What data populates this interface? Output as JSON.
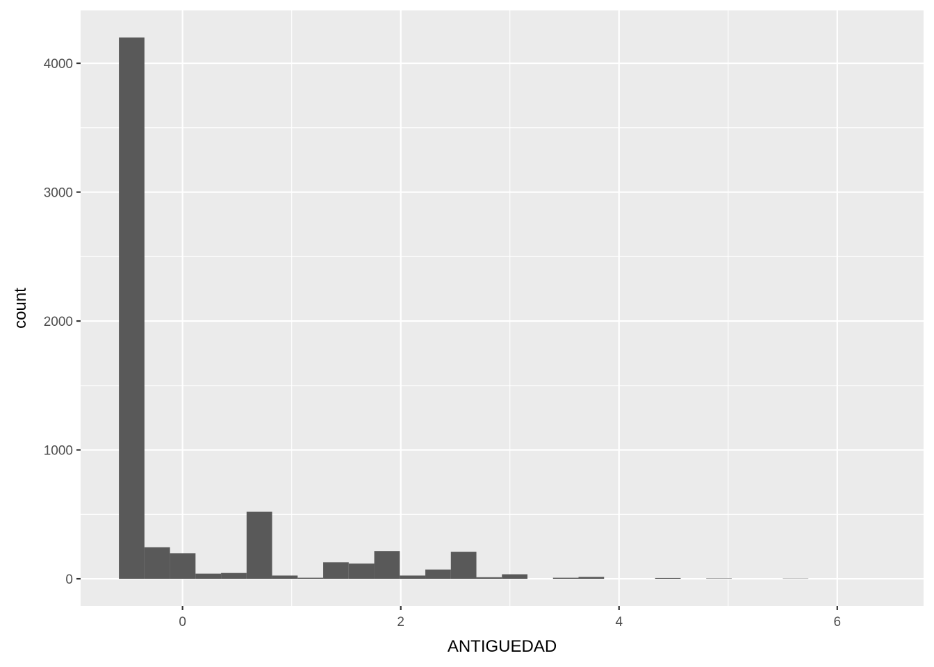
{
  "chart_data": {
    "type": "bar",
    "subtype": "histogram",
    "title": "",
    "xlabel": "ANTIGUEDAD",
    "ylabel": "count",
    "xlim": [
      -0.934,
      6.791
    ],
    "ylim": [
      -210,
      4410
    ],
    "x_ticks": [
      0,
      2,
      4,
      6
    ],
    "y_ticks": [
      0,
      1000,
      2000,
      3000,
      4000
    ],
    "x_tick_labels": [
      "0",
      "2",
      "4",
      "6"
    ],
    "y_tick_labels": [
      "0",
      "1000",
      "2000",
      "3000",
      "4000"
    ],
    "grid": true,
    "bins": [
      {
        "x0": -0.583,
        "x1": -0.349,
        "count": 4200
      },
      {
        "x0": -0.349,
        "x1": -0.115,
        "count": 245
      },
      {
        "x0": -0.115,
        "x1": 0.119,
        "count": 198
      },
      {
        "x0": 0.119,
        "x1": 0.353,
        "count": 40
      },
      {
        "x0": 0.353,
        "x1": 0.587,
        "count": 45
      },
      {
        "x0": 0.587,
        "x1": 0.821,
        "count": 520
      },
      {
        "x0": 0.821,
        "x1": 1.055,
        "count": 25
      },
      {
        "x0": 1.055,
        "x1": 1.289,
        "count": 8
      },
      {
        "x0": 1.289,
        "x1": 1.523,
        "count": 128
      },
      {
        "x0": 1.523,
        "x1": 1.757,
        "count": 118
      },
      {
        "x0": 1.757,
        "x1": 1.991,
        "count": 215
      },
      {
        "x0": 1.991,
        "x1": 2.225,
        "count": 25
      },
      {
        "x0": 2.225,
        "x1": 2.459,
        "count": 72
      },
      {
        "x0": 2.459,
        "x1": 2.693,
        "count": 210
      },
      {
        "x0": 2.693,
        "x1": 2.927,
        "count": 12
      },
      {
        "x0": 2.927,
        "x1": 3.161,
        "count": 35
      },
      {
        "x0": 3.161,
        "x1": 3.395,
        "count": 0
      },
      {
        "x0": 3.395,
        "x1": 3.629,
        "count": 8
      },
      {
        "x0": 3.629,
        "x1": 3.863,
        "count": 15
      },
      {
        "x0": 3.863,
        "x1": 4.097,
        "count": 0
      },
      {
        "x0": 4.097,
        "x1": 4.331,
        "count": 0
      },
      {
        "x0": 4.331,
        "x1": 4.565,
        "count": 6
      },
      {
        "x0": 4.565,
        "x1": 4.799,
        "count": 0
      },
      {
        "x0": 4.799,
        "x1": 5.033,
        "count": 3
      },
      {
        "x0": 5.033,
        "x1": 5.267,
        "count": 0
      },
      {
        "x0": 5.267,
        "x1": 5.501,
        "count": 0
      },
      {
        "x0": 5.501,
        "x1": 5.735,
        "count": 2
      }
    ],
    "colors": {
      "panel_background": "#ebebeb",
      "grid_major": "#ffffff",
      "bar_fill": "#595959",
      "tick_text": "#4d4d4d",
      "axis_title_text": "#000000"
    }
  }
}
